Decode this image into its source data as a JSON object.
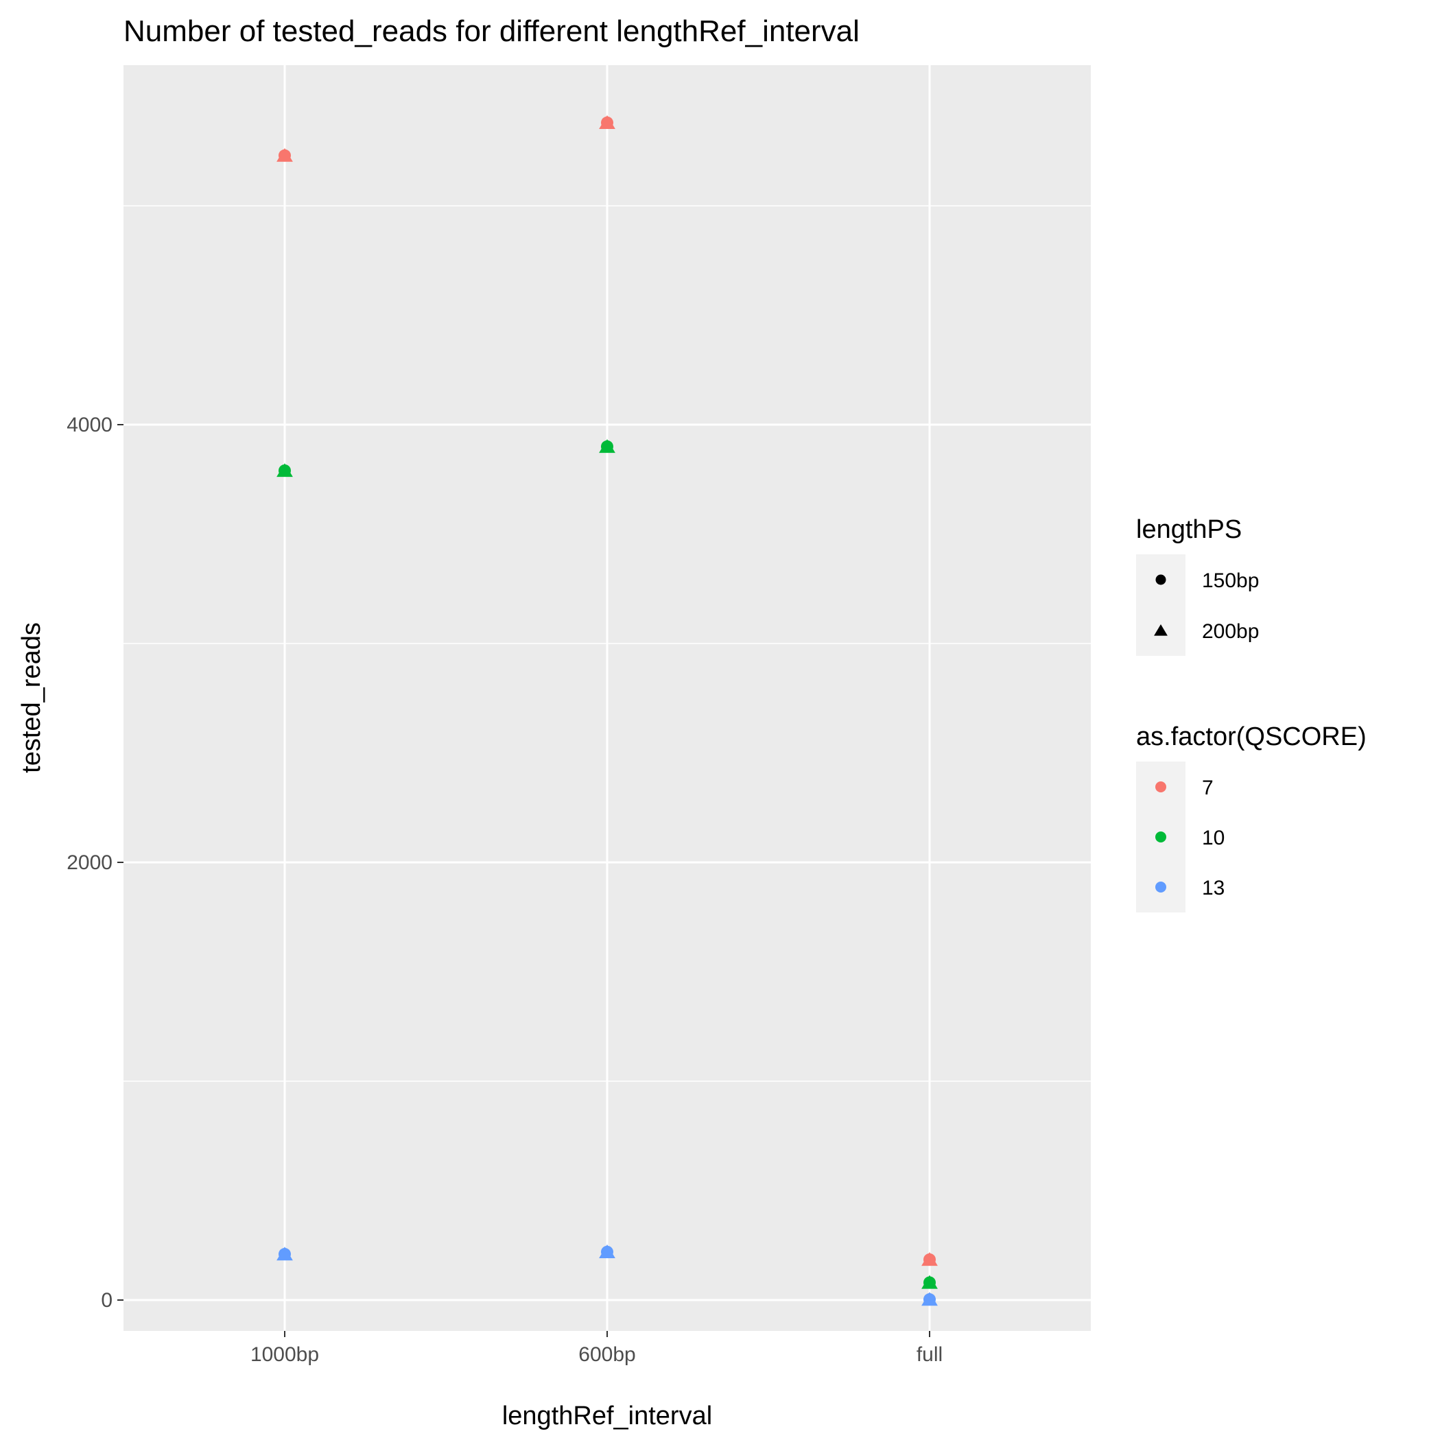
{
  "chart_data": {
    "type": "scatter",
    "title": "Number of tested_reads for different lengthRef_interval",
    "xlabel": "lengthRef_interval",
    "ylabel": "tested_reads",
    "categories": [
      "1000bp",
      "600bp",
      "full"
    ],
    "ylim": [
      -100,
      5750
    ],
    "yticks": [
      0,
      2000,
      4000
    ],
    "grid": true,
    "legend_position": "right",
    "shape_legend": {
      "title": "lengthPS",
      "items": [
        {
          "label": "150bp",
          "shape": "circle"
        },
        {
          "label": "200bp",
          "shape": "triangle"
        }
      ]
    },
    "color_legend": {
      "title": "as.factor(QSCORE)",
      "items": [
        {
          "label": "7",
          "color": "#F8766D"
        },
        {
          "label": "10",
          "color": "#00BA38"
        },
        {
          "label": "13",
          "color": "#619CFF"
        }
      ]
    },
    "series": [
      {
        "qscore": "7",
        "lengthPS": "150bp",
        "color": "#F8766D",
        "shape": "circle",
        "x": [
          "1000bp",
          "600bp",
          "full"
        ],
        "values": [
          5230,
          5380,
          185
        ]
      },
      {
        "qscore": "7",
        "lengthPS": "200bp",
        "color": "#F8766D",
        "shape": "triangle",
        "x": [
          "1000bp",
          "600bp",
          "full"
        ],
        "values": [
          5230,
          5380,
          185
        ]
      },
      {
        "qscore": "10",
        "lengthPS": "150bp",
        "color": "#00BA38",
        "shape": "circle",
        "x": [
          "1000bp",
          "600bp",
          "full"
        ],
        "values": [
          3790,
          3900,
          80
        ]
      },
      {
        "qscore": "10",
        "lengthPS": "200bp",
        "color": "#00BA38",
        "shape": "triangle",
        "x": [
          "1000bp",
          "600bp",
          "full"
        ],
        "values": [
          3790,
          3900,
          80
        ]
      },
      {
        "qscore": "13",
        "lengthPS": "150bp",
        "color": "#619CFF",
        "shape": "circle",
        "x": [
          "1000bp",
          "600bp",
          "full"
        ],
        "values": [
          210,
          220,
          3
        ]
      },
      {
        "qscore": "13",
        "lengthPS": "200bp",
        "color": "#619CFF",
        "shape": "triangle",
        "x": [
          "1000bp",
          "600bp",
          "full"
        ],
        "values": [
          210,
          220,
          3
        ]
      }
    ]
  }
}
